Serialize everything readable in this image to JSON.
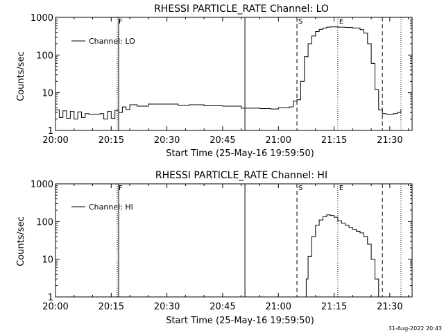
{
  "footer_timestamp": "31-Aug-2022 20:43",
  "chart_data": [
    {
      "type": "line",
      "title": "RHESSI PARTICLE_RATE Channel: LO",
      "xlabel": "Start Time (25-May-16 19:59:50)",
      "ylabel": "Counts/sec",
      "yscale": "log",
      "xlim": [
        "20:00",
        "21:36"
      ],
      "ylim": [
        1,
        1000
      ],
      "x_ticks": [
        "20:00",
        "20:15",
        "20:30",
        "20:45",
        "21:00",
        "21:15",
        "21:30"
      ],
      "y_ticks": [
        "1",
        "10",
        "100",
        "1000"
      ],
      "legend": "Channel: LO",
      "legend_position": "top-left",
      "markers": [
        {
          "time": "20:17",
          "label": "F",
          "style": "dotted"
        },
        {
          "time": "20:17",
          "label": "",
          "style": "solid"
        },
        {
          "time": "20:51",
          "label": "",
          "style": "solid"
        },
        {
          "time": "21:05",
          "label": "S",
          "style": "dashed"
        },
        {
          "time": "21:16",
          "label": "E",
          "style": "dotted"
        },
        {
          "time": "21:28",
          "label": "",
          "style": "dashed"
        },
        {
          "time": "21:33",
          "label": "",
          "style": "dotted"
        }
      ],
      "series": [
        {
          "x": [
            "20:00",
            "20:01",
            "20:02",
            "20:03",
            "20:04",
            "20:05",
            "20:06",
            "20:07",
            "20:08",
            "20:09",
            "20:10",
            "20:11",
            "20:12",
            "20:13",
            "20:14",
            "20:15",
            "20:16",
            "20:17",
            "20:18",
            "20:19",
            "20:20",
            "20:22",
            "20:25",
            "20:28",
            "20:30",
            "20:33",
            "20:36",
            "20:40",
            "20:45",
            "20:50",
            "20:55",
            "20:58",
            "21:00",
            "21:02",
            "21:03",
            "21:04",
            "21:05",
            "21:06",
            "21:07",
            "21:08",
            "21:09",
            "21:10",
            "21:11",
            "21:12",
            "21:13",
            "21:14",
            "21:15",
            "21:16",
            "21:18",
            "21:20",
            "21:22",
            "21:23",
            "21:24",
            "21:25",
            "21:26",
            "21:27",
            "21:28",
            "21:29",
            "21:30",
            "21:31",
            "21:32",
            "21:33"
          ],
          "values": [
            3.5,
            2.2,
            3.3,
            2.1,
            3.2,
            2.0,
            3.1,
            2.2,
            2.8,
            2.7,
            2.7,
            2.7,
            2.8,
            2.0,
            3.2,
            2.1,
            3.4,
            3.0,
            4.2,
            3.6,
            4.8,
            4.4,
            5.0,
            5.0,
            5.0,
            4.6,
            4.8,
            4.5,
            4.4,
            3.9,
            3.8,
            3.7,
            4.0,
            4.0,
            4.2,
            6.0,
            6.5,
            20,
            90,
            200,
            320,
            420,
            480,
            520,
            550,
            560,
            560,
            550,
            540,
            520,
            470,
            380,
            200,
            60,
            12,
            3.5,
            2.8,
            2.7,
            2.7,
            2.8,
            3.0,
            3.5
          ]
        }
      ]
    },
    {
      "type": "line",
      "title": "RHESSI PARTICLE_RATE Channel: HI",
      "xlabel": "Start Time (25-May-16 19:59:50)",
      "ylabel": "Counts/sec",
      "yscale": "log",
      "xlim": [
        "20:00",
        "21:36"
      ],
      "ylim": [
        1,
        1000
      ],
      "x_ticks": [
        "20:00",
        "20:15",
        "20:30",
        "20:45",
        "21:00",
        "21:15",
        "21:30"
      ],
      "y_ticks": [
        "1",
        "10",
        "100",
        "1000"
      ],
      "legend": "Channel: HI",
      "legend_position": "top-left",
      "markers": [
        {
          "time": "20:17",
          "label": "F",
          "style": "dotted"
        },
        {
          "time": "20:17",
          "label": "",
          "style": "solid"
        },
        {
          "time": "20:51",
          "label": "",
          "style": "solid"
        },
        {
          "time": "21:05",
          "label": "S",
          "style": "dashed"
        },
        {
          "time": "21:16",
          "label": "E",
          "style": "dotted"
        },
        {
          "time": "21:28",
          "label": "",
          "style": "dashed"
        },
        {
          "time": "21:33",
          "label": "",
          "style": "dotted"
        }
      ],
      "series": [
        {
          "x": [
            "21:07",
            "21:07.5",
            "21:08",
            "21:09",
            "21:10",
            "21:11",
            "21:12",
            "21:13",
            "21:14",
            "21:15",
            "21:16",
            "21:17",
            "21:18",
            "21:19",
            "21:20",
            "21:21",
            "21:22",
            "21:23",
            "21:24",
            "21:25",
            "21:26",
            "21:27"
          ],
          "values": [
            1.0,
            3,
            12,
            40,
            80,
            110,
            135,
            150,
            145,
            130,
            105,
            90,
            80,
            70,
            62,
            55,
            50,
            40,
            25,
            10,
            3,
            1.0
          ]
        }
      ]
    }
  ]
}
